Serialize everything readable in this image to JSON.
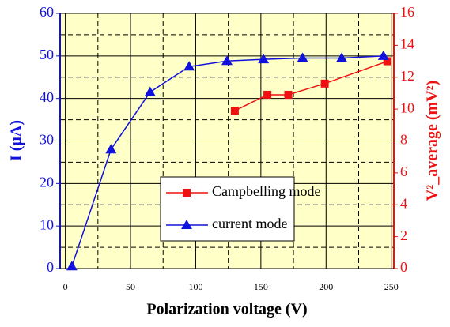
{
  "chart_data": {
    "type": "line",
    "xlabel": "Polarization voltage (V)",
    "ylabel": "I (µA)",
    "y2label": "V²_average (mV²)",
    "xlim": [
      -4,
      252
    ],
    "xticks": [
      0,
      50,
      100,
      150,
      200,
      250
    ],
    "xminor": [
      25,
      75,
      125,
      175,
      225
    ],
    "ylim": [
      0,
      60
    ],
    "yticks": [
      0,
      10,
      20,
      30,
      40,
      50,
      60
    ],
    "yminor": [
      5,
      15,
      25,
      35,
      45,
      55
    ],
    "y2lim": [
      0,
      16
    ],
    "y2ticks": [
      0,
      2,
      4,
      6,
      8,
      10,
      12,
      14,
      16
    ],
    "grid": true,
    "background": "#ffffc8",
    "legend": "lower center",
    "series": [
      {
        "name": "Campbelling mode",
        "color": "#ee1111",
        "marker": "square",
        "axis": "y2",
        "x": [
          130,
          155,
          171,
          199,
          247
        ],
        "values": [
          9.9,
          10.9,
          10.9,
          11.6,
          13.0
        ]
      },
      {
        "name": "current mode",
        "color": "#1111dd",
        "marker": "triangle",
        "x": [
          5,
          35,
          65,
          95,
          124,
          152,
          182,
          212,
          244
        ],
        "values": [
          0.5,
          28,
          41.5,
          47.5,
          48.8,
          49.2,
          49.5,
          49.5,
          50
        ]
      }
    ]
  }
}
